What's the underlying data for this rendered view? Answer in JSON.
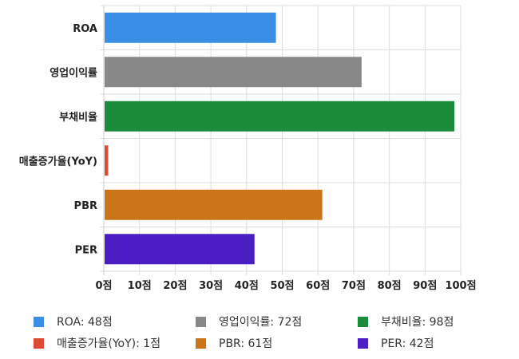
{
  "chart_data": {
    "type": "bar",
    "orientation": "horizontal",
    "categories": [
      "ROA",
      "영업이익률",
      "부채비율",
      "매출증가율(YoY)",
      "PBR",
      "PER"
    ],
    "values": [
      48,
      72,
      98,
      1,
      61,
      42
    ],
    "colors": [
      "#3a8ee6",
      "#888888",
      "#1a8c3a",
      "#e04a35",
      "#cc7518",
      "#4a1ec2"
    ],
    "xlim": [
      0,
      100
    ],
    "xticks": [
      0,
      10,
      20,
      30,
      40,
      50,
      60,
      70,
      80,
      90,
      100
    ],
    "tick_suffix": "점",
    "grid": true,
    "legend_position": "bottom",
    "legend": [
      {
        "label": "ROA: 48점",
        "color": "#3a8ee6"
      },
      {
        "label": "영업이익률: 72점",
        "color": "#888888"
      },
      {
        "label": "부채비율: 98점",
        "color": "#1a8c3a"
      },
      {
        "label": "매출증가율(YoY): 1점",
        "color": "#e04a35"
      },
      {
        "label": "PBR: 61점",
        "color": "#cc7518"
      },
      {
        "label": "PER: 42점",
        "color": "#4a1ec2"
      }
    ]
  }
}
